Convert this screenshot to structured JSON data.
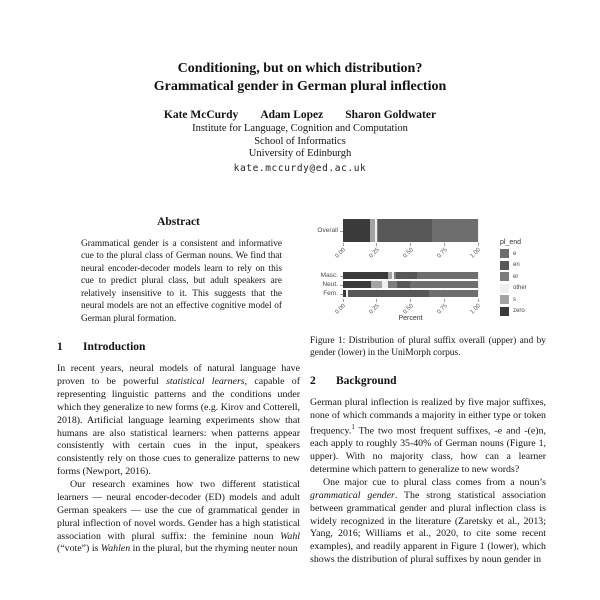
{
  "header": {
    "title_lines": [
      "Conditioning, but on which distribution?",
      "Grammatical gender in German plural inflection"
    ],
    "authors": [
      "Kate McCurdy",
      "Adam Lopez",
      "Sharon Goldwater"
    ],
    "affiliation_lines": [
      "Institute for Language, Cognition and Computation",
      "School of Informatics",
      "University of Edinburgh"
    ],
    "email": "kate.mccurdy@ed.ac.uk"
  },
  "abstract": {
    "heading": "Abstract",
    "text": "Grammatical gender is a consistent and informative cue to the plural class of German nouns. We find that neural encoder-decoder models learn to rely on this cue to predict plural class, but adult speakers are relatively insensitive to it. This suggests that the neural models are not an effective cognitive model of German plural formation."
  },
  "sections": [
    {
      "number": "1",
      "title": "Introduction",
      "paragraphs": [
        "In recent years, neural models of natural language have proven to be powerful *statistical learners*, capable of representing linguistic patterns and the conditions under which they generalize to new forms (e.g. Kirov and Cotterell, 2018). Artificial language learning experiments show that humans are also statistical learners: when patterns appear consistently with certain cues in the input, speakers consistently rely on those cues to generalize patterns to new forms (Newport, 2016).",
        "Our research examines how two different statistical learners — neural encoder-decoder (ED) models and adult German speakers — use the cue of grammatical gender in plural inflection of novel words. Gender has a high statistical association with plural suffix: the feminine noun *Wahl* (“vote”) is *Wahlen* in the plural, but the rhyming neuter noun"
      ]
    },
    {
      "number": "2",
      "title": "Background",
      "paragraphs": [
        "German plural inflection is realized by five major suffixes, none of which commands a majority in either type or token frequency.^1^ The two most frequent suffixes, -e and -(e)n, each apply to roughly 35-40% of German nouns (Figure 1, upper). With no majority class, how can a learner determine which pattern to generalize to new words?",
        "One major cue to plural class comes from a noun’s *grammatical gender*. The strong statistical association between grammatical gender and plural inflection class is widely recognized in the literature (Zaretsky et al., 2013; Yang, 2016; Williams et al., 2020, to cite some recent examples), and readily apparent in Figure 1 (lower), which shows the distribution of plural suffixes by noun gender in"
      ]
    }
  ],
  "figure": {
    "caption": "Figure 1: Distribution of plural suffix overall (upper) and by gender (lower) in the UniMorph corpus."
  },
  "chart_data": {
    "type": "bar",
    "variant": "horizontal-stacked",
    "xlabel": "Percent",
    "xlim": [
      0,
      1
    ],
    "xticks": [
      0.0,
      0.25,
      0.5,
      0.75,
      1.0
    ],
    "legend_title": "pl_end",
    "legend_position": "right",
    "legend_entries": [
      "e",
      "en",
      "er",
      "other",
      "s",
      "zero"
    ],
    "colors": {
      "e": "#6e6e6e",
      "en": "#575757",
      "er": "#7d7d7d",
      "other": "#efefef",
      "s": "#a3a3a3",
      "zero": "#3a3a3a"
    },
    "stack_order": [
      "zero",
      "s",
      "other",
      "er",
      "en",
      "e"
    ],
    "panels": [
      {
        "name": "overall",
        "rows": [
          {
            "label": "Overall",
            "values": {
              "zero": 0.2,
              "s": 0.035,
              "other": 0.015,
              "er": 0.01,
              "en": 0.4,
              "e": 0.34
            }
          }
        ]
      },
      {
        "name": "by-gender",
        "rows": [
          {
            "label": "Masc.",
            "values": {
              "zero": 0.33,
              "s": 0.03,
              "other": 0.015,
              "er": 0.015,
              "en": 0.16,
              "e": 0.45
            }
          },
          {
            "label": "Neut.",
            "values": {
              "zero": 0.21,
              "s": 0.08,
              "other": 0.045,
              "er": 0.065,
              "en": 0.1,
              "e": 0.5
            }
          },
          {
            "label": "Fem.",
            "values": {
              "zero": 0.02,
              "s": 0.005,
              "other": 0.01,
              "er": 0.005,
              "en": 0.6,
              "e": 0.36
            }
          }
        ]
      }
    ]
  }
}
